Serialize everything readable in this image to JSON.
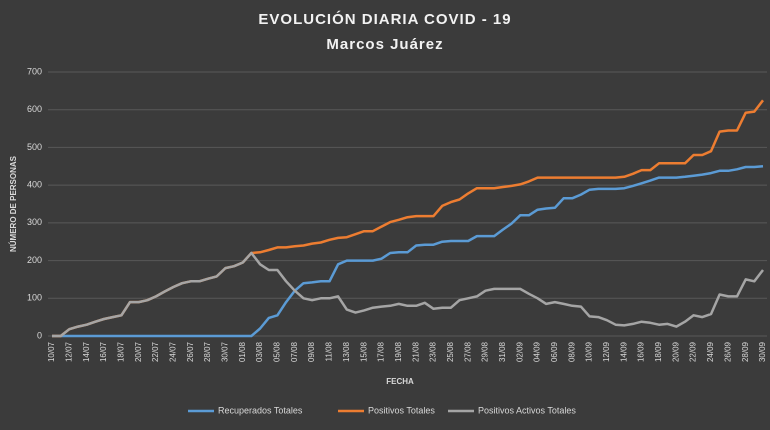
{
  "chart_data": {
    "type": "line",
    "title": "EVOLUCIÓN  DIARIA COVID - 19",
    "subtitle": "Marcos  Juárez",
    "x_label": "FECHA",
    "y_label": "NÚMERO DE PERSONAS",
    "categories": [
      "10/07",
      null,
      "12/07",
      null,
      "14/07",
      null,
      "16/07",
      null,
      "18/07",
      null,
      "20/07",
      null,
      "22/07",
      null,
      "24/07",
      null,
      "26/07",
      null,
      "28/07",
      null,
      "30/07",
      null,
      "01/08",
      null,
      "03/08",
      null,
      "05/08",
      null,
      "07/08",
      null,
      "09/08",
      null,
      "11/08",
      null,
      "13/08",
      null,
      "15/08",
      null,
      "17/08",
      null,
      "19/08",
      null,
      "21/08",
      null,
      "23/08",
      null,
      "25/08",
      null,
      "27/08",
      null,
      "29/08",
      null,
      "31/08",
      null,
      "02/09",
      null,
      "04/09",
      null,
      "06/09",
      null,
      "08/09",
      null,
      "10/09",
      null,
      "12/09",
      null,
      "14/09",
      null,
      "16/09",
      null,
      "18/09",
      null,
      "20/09",
      null,
      "22/09",
      null,
      "24/09",
      null,
      "26/09",
      null,
      "28/09",
      null,
      "30/09"
    ],
    "ylim": [
      0,
      700
    ],
    "yticks": [
      0,
      100,
      200,
      300,
      400,
      500,
      600,
      700
    ],
    "grid": true,
    "legend": "bottom",
    "series": [
      {
        "name": "Recuperados Totales",
        "color": "#5b9bd5",
        "values": [
          0,
          0,
          0,
          0,
          0,
          0,
          0,
          0,
          0,
          0,
          0,
          0,
          0,
          0,
          0,
          0,
          0,
          0,
          0,
          0,
          0,
          0,
          0,
          0,
          20,
          48,
          55,
          90,
          120,
          140,
          142,
          145,
          145,
          190,
          200,
          200,
          200,
          200,
          205,
          220,
          222,
          222,
          240,
          242,
          242,
          250,
          252,
          252,
          252,
          265,
          265,
          265,
          282,
          298,
          320,
          320,
          335,
          338,
          340,
          365,
          365,
          375,
          388,
          390,
          390,
          390,
          392,
          398,
          405,
          412,
          420,
          420,
          420,
          422,
          425,
          428,
          432,
          438,
          438,
          442,
          448,
          448,
          450
        ]
      },
      {
        "name": "Positivos Totales",
        "color": "#ed7d31",
        "values": [
          0,
          0,
          18,
          25,
          30,
          38,
          45,
          50,
          55,
          90,
          90,
          95,
          105,
          118,
          130,
          140,
          145,
          145,
          152,
          158,
          180,
          185,
          195,
          220,
          222,
          228,
          235,
          235,
          238,
          240,
          245,
          248,
          255,
          260,
          262,
          270,
          278,
          278,
          290,
          302,
          308,
          315,
          318,
          318,
          318,
          345,
          355,
          362,
          378,
          392,
          392,
          392,
          395,
          398,
          402,
          410,
          420,
          420,
          420,
          420,
          420,
          420,
          420,
          420,
          420,
          420,
          422,
          430,
          440,
          440,
          458,
          458,
          458,
          458,
          480,
          480,
          490,
          542,
          545,
          545,
          592,
          595,
          625
        ]
      },
      {
        "name": "Positivos Activos Totales",
        "color": "#a5a5a5",
        "values": [
          0,
          0,
          18,
          25,
          30,
          38,
          45,
          50,
          55,
          90,
          90,
          95,
          105,
          118,
          130,
          140,
          145,
          145,
          152,
          158,
          180,
          185,
          195,
          220,
          190,
          175,
          175,
          145,
          120,
          100,
          95,
          100,
          100,
          105,
          70,
          62,
          68,
          75,
          78,
          80,
          85,
          80,
          80,
          88,
          72,
          75,
          75,
          95,
          100,
          105,
          120,
          125,
          125,
          125,
          125,
          112,
          100,
          85,
          90,
          85,
          80,
          78,
          52,
          50,
          42,
          30,
          28,
          32,
          38,
          35,
          30,
          32,
          25,
          38,
          55,
          50,
          58,
          110,
          105,
          105,
          150,
          145,
          175
        ]
      }
    ]
  }
}
